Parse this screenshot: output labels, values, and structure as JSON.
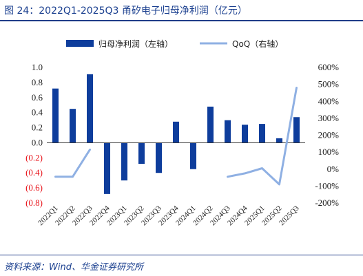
{
  "title": "图 24：2022Q1-2025Q3 甬矽电子归母净利润（亿元）",
  "source": "资料来源：Wind、华金证券研究所",
  "chart_data": {
    "type": "bar+line",
    "categories": [
      "2022Q1",
      "2022Q2",
      "2022Q3",
      "2022Q4",
      "2023Q1",
      "2023Q2",
      "2023Q3",
      "2023Q4",
      "2024Q1",
      "2024Q2",
      "2024Q3",
      "2024Q4",
      "2025Q1",
      "2025Q2",
      "2025Q3"
    ],
    "series": [
      {
        "name": "归母净利润（左轴）",
        "type": "bar",
        "axis": "left",
        "color": "#0e3d9c",
        "values": [
          0.72,
          0.45,
          0.91,
          -0.68,
          -0.5,
          -0.28,
          -0.4,
          0.28,
          -0.35,
          0.48,
          0.3,
          0.24,
          0.25,
          0.06,
          0.34
        ]
      },
      {
        "name": "QoQ（右轴）",
        "type": "line",
        "axis": "right",
        "color": "#8fb0e3",
        "values": [
          -45,
          -45,
          115,
          null,
          null,
          null,
          null,
          null,
          null,
          null,
          -45,
          -25,
          5,
          -90,
          480
        ]
      }
    ],
    "left_axis": {
      "ylim": [
        -0.8,
        1.0
      ],
      "ticks": [
        {
          "v": 1.0,
          "label": "1.0"
        },
        {
          "v": 0.8,
          "label": "0.8"
        },
        {
          "v": 0.6,
          "label": "0.6"
        },
        {
          "v": 0.4,
          "label": "0.4"
        },
        {
          "v": 0.2,
          "label": "0.2"
        },
        {
          "v": 0.0,
          "label": "0.0"
        },
        {
          "v": -0.2,
          "label": "(0.2)"
        },
        {
          "v": -0.4,
          "label": "(0.4)"
        },
        {
          "v": -0.6,
          "label": "(0.6)"
        },
        {
          "v": -0.8,
          "label": "(0.8)"
        }
      ],
      "negative_color": "#e8141b",
      "positive_color": "#222222"
    },
    "right_axis": {
      "ylim": [
        -200,
        600
      ],
      "ticks": [
        "600%",
        "500%",
        "400%",
        "300%",
        "200%",
        "100%",
        "0%",
        "-100%",
        "-200%"
      ]
    },
    "grid": false,
    "legend": "top"
  }
}
